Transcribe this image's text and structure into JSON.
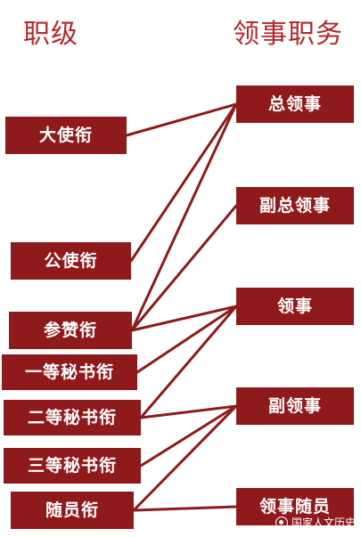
{
  "header": {
    "left_title": "职级",
    "right_title": "领事职务"
  },
  "ranks": [
    {
      "id": "ambassador",
      "label": "大使衔"
    },
    {
      "id": "minister",
      "label": "公使衔"
    },
    {
      "id": "counsellor",
      "label": "参赞衔"
    },
    {
      "id": "first-secretary",
      "label": "一等秘书衔"
    },
    {
      "id": "second-secretary",
      "label": "二等秘书衔"
    },
    {
      "id": "third-secretary",
      "label": "三等秘书衔"
    },
    {
      "id": "attache",
      "label": "随员衔"
    }
  ],
  "posts": [
    {
      "id": "consul-general",
      "label": "总领事"
    },
    {
      "id": "deputy-consul-general",
      "label": "副总领事"
    },
    {
      "id": "consul",
      "label": "领事"
    },
    {
      "id": "vice-consul",
      "label": "副领事"
    },
    {
      "id": "consular-attache",
      "label": "领事随员"
    }
  ],
  "links": [
    [
      "ambassador",
      "consul-general"
    ],
    [
      "minister",
      "consul-general"
    ],
    [
      "counsellor",
      "consul-general"
    ],
    [
      "counsellor",
      "deputy-consul-general"
    ],
    [
      "counsellor",
      "consul"
    ],
    [
      "first-secretary",
      "consul"
    ],
    [
      "second-secretary",
      "consul"
    ],
    [
      "second-secretary",
      "vice-consul"
    ],
    [
      "third-secretary",
      "vice-consul"
    ],
    [
      "attache",
      "vice-consul"
    ],
    [
      "attache",
      "consular-attache"
    ]
  ],
  "colors": {
    "header_text": "#b5282b",
    "box_fill": "#8f1a1c",
    "box_text": "#ffffff",
    "line": "#8f1a1c"
  },
  "watermark": {
    "icon": "wechat-account-icon",
    "text": "国家人文历史"
  }
}
